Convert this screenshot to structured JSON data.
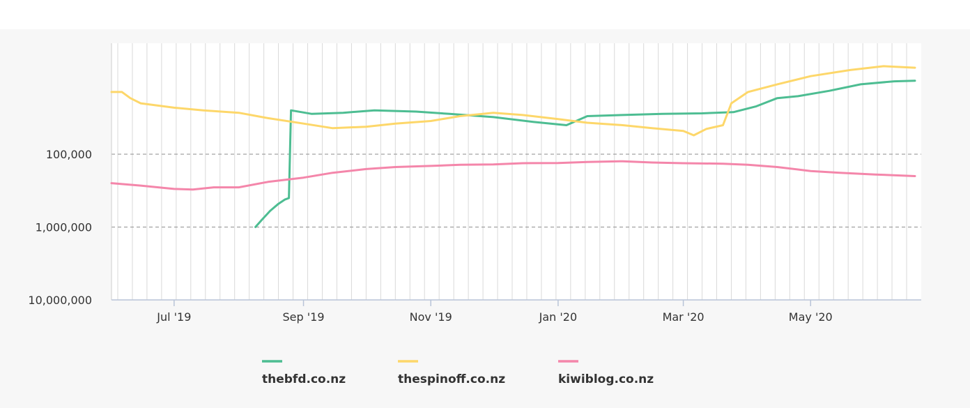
{
  "chart_data": {
    "type": "line",
    "title": "",
    "xlabel": "",
    "ylabel": "",
    "y_scale": "log",
    "y_reversed": true,
    "ylim": [
      3000,
      10000000
    ],
    "xlim": [
      "2019-06-01",
      "2020-06-23"
    ],
    "y_ticks": [
      {
        "value": 100000,
        "label": "100,000"
      },
      {
        "value": 1000000,
        "label": "1,000,000"
      },
      {
        "value": 10000000,
        "label": "10,000,000"
      }
    ],
    "x_ticks": [
      {
        "date": "2019-07-01",
        "label": "Jul '19"
      },
      {
        "date": "2019-09-01",
        "label": "Sep '19"
      },
      {
        "date": "2019-11-01",
        "label": "Nov '19"
      },
      {
        "date": "2020-01-01",
        "label": "Jan '20"
      },
      {
        "date": "2020-03-01",
        "label": "Mar '20"
      },
      {
        "date": "2020-05-01",
        "label": "May '20"
      }
    ],
    "grid": {
      "vertical": "weekly",
      "horizontal": "dashed at major ticks"
    },
    "legend_position": "bottom",
    "series": [
      {
        "name": "thebfd.co.nz",
        "color": "#4dbd92",
        "points": [
          [
            "2019-08-09",
            1000000
          ],
          [
            "2019-08-12",
            800000
          ],
          [
            "2019-08-16",
            600000
          ],
          [
            "2019-08-20",
            480000
          ],
          [
            "2019-08-23",
            420000
          ],
          [
            "2019-08-25",
            400000
          ],
          [
            "2019-08-26",
            25000
          ],
          [
            "2019-09-05",
            28000
          ],
          [
            "2019-09-20",
            27000
          ],
          [
            "2019-10-05",
            25000
          ],
          [
            "2019-10-25",
            26000
          ],
          [
            "2019-11-10",
            28000
          ],
          [
            "2019-12-01",
            31000
          ],
          [
            "2019-12-20",
            36000
          ],
          [
            "2020-01-05",
            40000
          ],
          [
            "2020-01-15",
            30000
          ],
          [
            "2020-02-01",
            29000
          ],
          [
            "2020-02-20",
            28000
          ],
          [
            "2020-03-10",
            27500
          ],
          [
            "2020-03-25",
            26500
          ],
          [
            "2020-04-05",
            22000
          ],
          [
            "2020-04-15",
            17000
          ],
          [
            "2020-04-25",
            16000
          ],
          [
            "2020-05-10",
            13500
          ],
          [
            "2020-05-25",
            11000
          ],
          [
            "2020-06-10",
            10000
          ],
          [
            "2020-06-20",
            9800
          ]
        ]
      },
      {
        "name": "thespinoff.co.nz",
        "color": "#fdd76a",
        "points": [
          [
            "2019-06-01",
            14000
          ],
          [
            "2019-06-06",
            14000
          ],
          [
            "2019-06-10",
            17000
          ],
          [
            "2019-06-15",
            20000
          ],
          [
            "2019-07-01",
            23000
          ],
          [
            "2019-07-15",
            25000
          ],
          [
            "2019-08-01",
            27000
          ],
          [
            "2019-08-15",
            32000
          ],
          [
            "2019-09-01",
            38000
          ],
          [
            "2019-09-15",
            44000
          ],
          [
            "2019-10-01",
            42000
          ],
          [
            "2019-10-15",
            38000
          ],
          [
            "2019-11-01",
            35000
          ],
          [
            "2019-11-15",
            30000
          ],
          [
            "2019-12-01",
            27000
          ],
          [
            "2019-12-15",
            29000
          ],
          [
            "2020-01-01",
            33000
          ],
          [
            "2020-01-15",
            37000
          ],
          [
            "2020-02-01",
            40000
          ],
          [
            "2020-02-15",
            44000
          ],
          [
            "2020-03-01",
            48000
          ],
          [
            "2020-03-06",
            55000
          ],
          [
            "2020-03-12",
            45000
          ],
          [
            "2020-03-20",
            40000
          ],
          [
            "2020-03-24",
            20000
          ],
          [
            "2020-04-01",
            14000
          ],
          [
            "2020-04-15",
            11000
          ],
          [
            "2020-05-01",
            8500
          ],
          [
            "2020-05-20",
            7000
          ],
          [
            "2020-06-05",
            6200
          ],
          [
            "2020-06-20",
            6500
          ]
        ]
      },
      {
        "name": "kiwiblog.co.nz",
        "color": "#f486aa",
        "points": [
          [
            "2019-06-01",
            250000
          ],
          [
            "2019-06-15",
            270000
          ],
          [
            "2019-07-01",
            300000
          ],
          [
            "2019-07-10",
            305000
          ],
          [
            "2019-07-20",
            285000
          ],
          [
            "2019-08-01",
            285000
          ],
          [
            "2019-08-15",
            240000
          ],
          [
            "2019-09-01",
            210000
          ],
          [
            "2019-09-15",
            180000
          ],
          [
            "2019-10-01",
            160000
          ],
          [
            "2019-10-15",
            150000
          ],
          [
            "2019-11-01",
            145000
          ],
          [
            "2019-11-15",
            140000
          ],
          [
            "2019-12-01",
            138000
          ],
          [
            "2019-12-15",
            133000
          ],
          [
            "2020-01-01",
            132000
          ],
          [
            "2020-01-15",
            128000
          ],
          [
            "2020-02-01",
            125000
          ],
          [
            "2020-02-15",
            130000
          ],
          [
            "2020-03-01",
            133000
          ],
          [
            "2020-03-20",
            135000
          ],
          [
            "2020-04-01",
            140000
          ],
          [
            "2020-04-15",
            150000
          ],
          [
            "2020-05-01",
            170000
          ],
          [
            "2020-05-15",
            180000
          ],
          [
            "2020-06-01",
            190000
          ],
          [
            "2020-06-20",
            200000
          ]
        ]
      }
    ]
  }
}
